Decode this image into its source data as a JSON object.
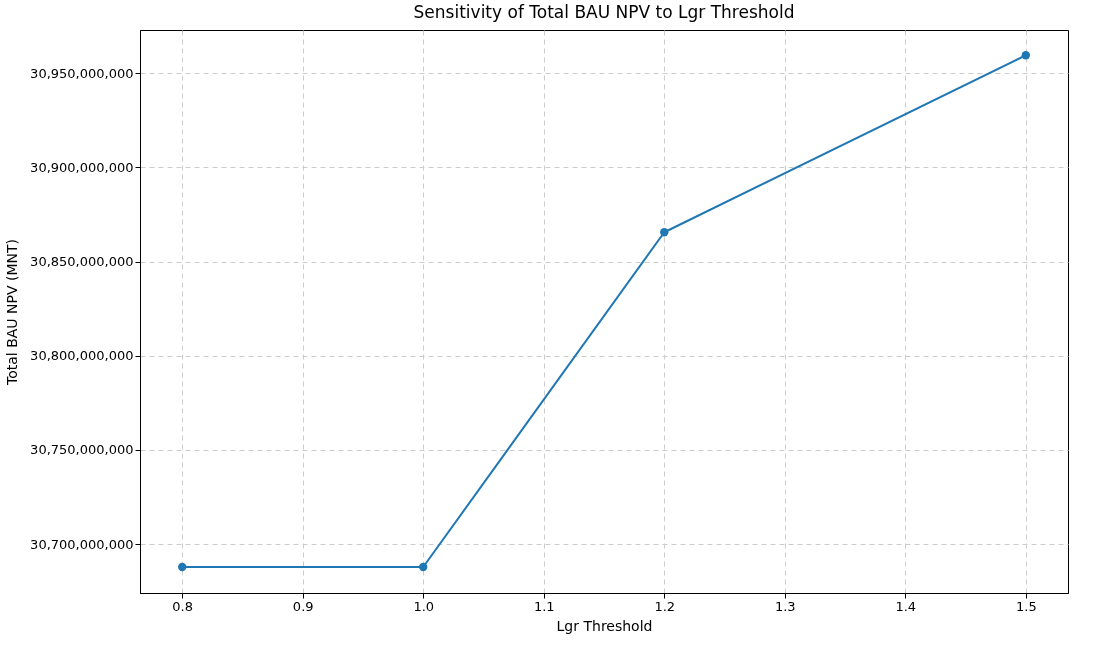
{
  "chart_data": {
    "type": "line",
    "title": "Sensitivity of Total BAU NPV to Lgr Threshold",
    "xlabel": "Lgr Threshold",
    "ylabel": "Total BAU NPV (MNT)",
    "x": [
      0.8,
      1.0,
      1.2,
      1.5
    ],
    "series": [
      {
        "color": "#1f77b4",
        "values": [
          30687800000,
          30687800000,
          30865600000,
          30959600000
        ]
      }
    ],
    "xlim": [
      0.765,
      1.535
    ],
    "xticks": [
      0.8,
      0.9,
      {
        "value": 1,
        "label": "1.0"
      },
      1.1,
      1.2,
      1.3,
      1.4,
      1.5
    ],
    "ylim": [
      30674000000,
      30973000000
    ],
    "yticks": [
      {
        "value": 30700000000,
        "label": "30,700,000,000"
      },
      {
        "value": 30750000000,
        "label": "30,750,000,000"
      },
      {
        "value": 30800000000,
        "label": "30,800,000,000"
      },
      {
        "value": 30850000000,
        "label": "30,850,000,000"
      },
      {
        "value": 30900000000,
        "label": "30,900,000,000"
      },
      {
        "value": 30950000000,
        "label": "30,950,000,000"
      }
    ],
    "grid": true,
    "marker": "circle",
    "line_style": "solid"
  }
}
